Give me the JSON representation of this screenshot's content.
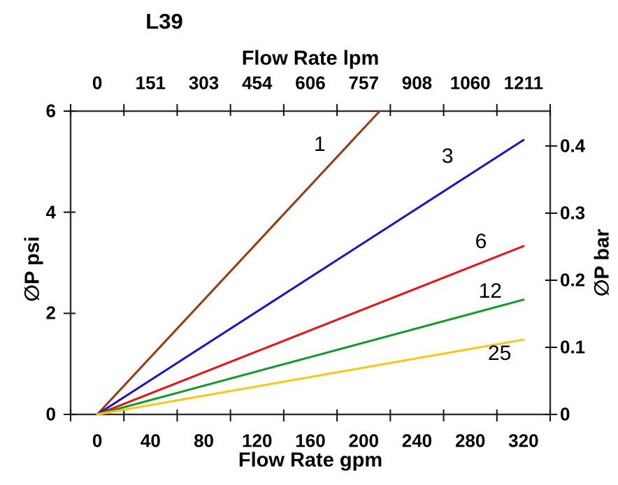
{
  "chart_data": {
    "type": "line",
    "title": "L39",
    "grid": false,
    "frame_color": "#303030",
    "tick_color": "#111111",
    "x_bottom": {
      "label": "Flow Rate gpm",
      "ticks": [
        "0",
        "40",
        "80",
        "120",
        "160",
        "200",
        "240",
        "280",
        "320"
      ],
      "range_gpm": [
        -20,
        340
      ]
    },
    "x_top": {
      "label": "Flow Rate lpm",
      "ticks": [
        "0",
        "151",
        "303",
        "454",
        "606",
        "757",
        "908",
        "1060",
        "1211"
      ]
    },
    "y_left": {
      "label": "∅P psi",
      "ticks": [
        "0",
        "2",
        "4",
        "6"
      ],
      "range_psi": [
        0,
        6
      ]
    },
    "y_right": {
      "label": "∅P bar",
      "ticks": [
        "0",
        "0.1",
        "0.2",
        "0.3",
        "0.4"
      ],
      "axis_max_bar": 0.452
    },
    "series": [
      {
        "name": "1",
        "color": "#9a380e",
        "points_gpm_psi": [
          [
            0,
            0
          ],
          [
            212,
            6.0
          ]
        ],
        "label_at_gpm_psi": [
          167,
          5.33
        ]
      },
      {
        "name": "3",
        "color": "#1515cd",
        "points_gpm_psi": [
          [
            0,
            0
          ],
          [
            320,
            5.43
          ]
        ],
        "label_at_gpm_psi": [
          263,
          5.1
        ]
      },
      {
        "name": "6",
        "color": "#ee1111",
        "points_gpm_psi": [
          [
            0,
            0
          ],
          [
            320,
            3.33
          ]
        ],
        "label_at_gpm_psi": [
          288,
          3.42
        ]
      },
      {
        "name": "12",
        "color": "#109b2c",
        "points_gpm_psi": [
          [
            0,
            0
          ],
          [
            320,
            2.27
          ]
        ],
        "label_at_gpm_psi": [
          295,
          2.43
        ]
      },
      {
        "name": "25",
        "color": "#fcc714",
        "points_gpm_psi": [
          [
            0,
            0
          ],
          [
            320,
            1.48
          ]
        ],
        "label_at_gpm_psi": [
          302,
          1.2
        ]
      }
    ]
  }
}
